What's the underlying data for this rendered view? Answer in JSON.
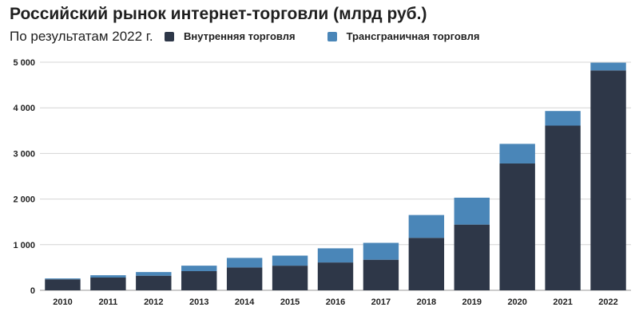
{
  "chart_data": {
    "type": "bar",
    "stacked": true,
    "title": "Российский рынок интернет-торговли (млрд руб.)",
    "subtitle": "По результатам 2022 г.",
    "categories": [
      "2010",
      "2011",
      "2012",
      "2013",
      "2014",
      "2015",
      "2016",
      "2017",
      "2018",
      "2019",
      "2020",
      "2021",
      "2022"
    ],
    "series": [
      {
        "name": "Внутренняя торговля",
        "color": "#2e3748",
        "values": [
          240,
          280,
          320,
          420,
          500,
          540,
          610,
          670,
          1150,
          1440,
          2780,
          3610,
          4820
        ]
      },
      {
        "name": "Трансграничная торговля",
        "color": "#4a86b8",
        "values": [
          20,
          50,
          80,
          120,
          210,
          220,
          310,
          370,
          500,
          590,
          430,
          320,
          170
        ]
      }
    ],
    "ylim": [
      0,
      5000
    ],
    "yticks": [
      0,
      1000,
      2000,
      3000,
      4000,
      5000
    ],
    "ytick_labels": [
      "0",
      "1 000",
      "2 000",
      "3 000",
      "4 000",
      "5 000"
    ],
    "grid": true,
    "legend_position": "top"
  }
}
